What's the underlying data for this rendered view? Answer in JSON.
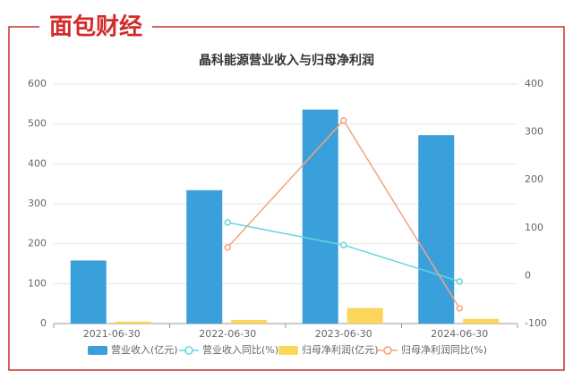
{
  "logo": "面包财经",
  "chart_data": {
    "type": "bar",
    "title": "晶科能源营业收入与归母净利润",
    "categories": [
      "2021-06-30",
      "2022-06-30",
      "2023-06-30",
      "2024-06-30"
    ],
    "ylim": [
      0,
      600
    ],
    "yticks": [
      0,
      100,
      200,
      300,
      400,
      500,
      600
    ],
    "y2lim": [
      -100,
      400
    ],
    "y2ticks": [
      -100,
      0,
      100,
      200,
      300,
      400
    ],
    "grid": true,
    "legend": "bottom",
    "series": [
      {
        "name": "营业收入(亿元)",
        "type": "bar",
        "color": "#3aa0dc",
        "values": [
          158,
          334,
          536,
          472
        ]
      },
      {
        "name": "营业收入同比(%)",
        "type": "line",
        "axis": "y2",
        "color": "#5fd8e0",
        "values": [
          null,
          111,
          64,
          -12
        ]
      },
      {
        "name": "归母净利润(亿元)",
        "type": "bar",
        "color": "#fbd65a",
        "values": [
          5,
          9,
          39,
          12
        ]
      },
      {
        "name": "归母净利润同比(%)",
        "type": "line",
        "axis": "y2",
        "color": "#f4a27e",
        "values": [
          null,
          59,
          324,
          -68
        ]
      }
    ]
  }
}
